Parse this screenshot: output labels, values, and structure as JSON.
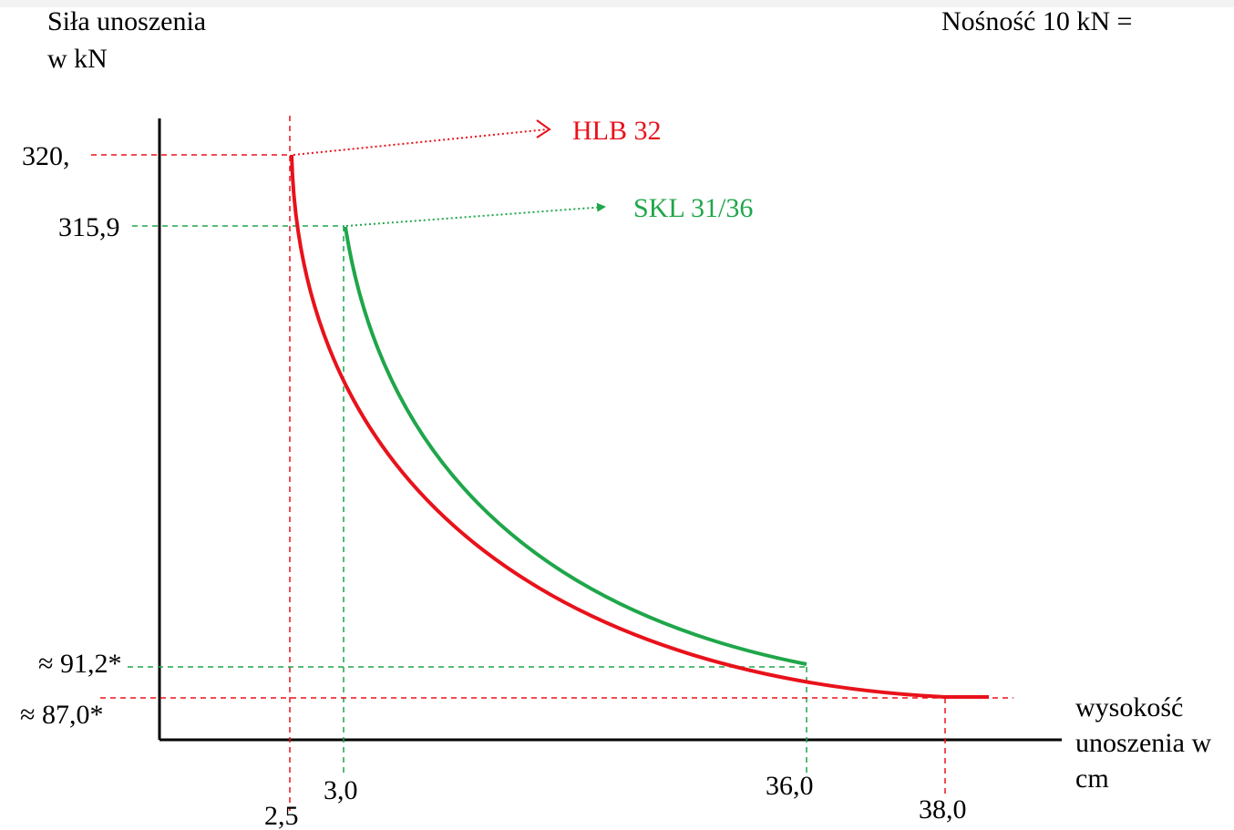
{
  "chart_data": {
    "type": "line",
    "ylabel_lines": [
      "Siła unoszenia",
      "w kN"
    ],
    "xlabel_lines": [
      "wysokość",
      "unoszenia w",
      "cm"
    ],
    "note": "Nośność 10 kN =",
    "y_ticks": [
      "320,",
      "315,9",
      "≈ 91,2*",
      "≈ 87,0*"
    ],
    "x_ticks": [
      "2,5",
      "3,0",
      "36,0",
      "38,0"
    ],
    "colors": {
      "HLB 32": "#e8121b",
      "SKL 31/36": "#1fa64a",
      "axis": "#000000"
    },
    "series": [
      {
        "name": "HLB 32",
        "start": {
          "x": 2.5,
          "y": 320.0
        },
        "end": {
          "x": 38.0,
          "y": 87.0
        },
        "end_of_curve": "flattens beyond 38,0"
      },
      {
        "name": "SKL 31/36",
        "start": {
          "x": 3.0,
          "y": 315.9
        },
        "end": {
          "x": 36.0,
          "y": 91.2
        }
      }
    ]
  }
}
